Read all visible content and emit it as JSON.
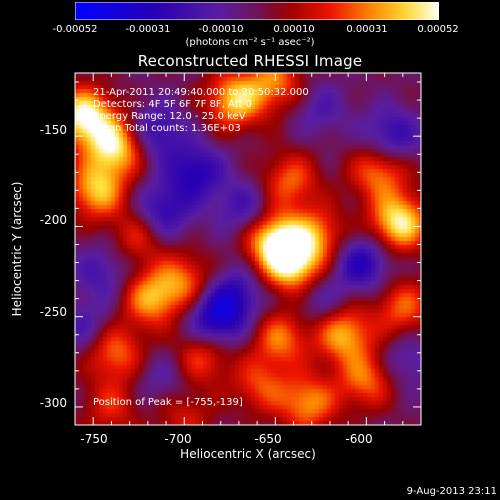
{
  "chart_data": {
    "type": "heatmap",
    "title": "Reconstructed RHESSI Image",
    "xlabel": "Heliocentric X (arcsec)",
    "ylabel": "Heliocentric Y (arcsec)",
    "xlim": [
      -760,
      -570
    ],
    "ylim": [
      -310,
      -115
    ],
    "x_ticks": [
      -750,
      -700,
      -650,
      -600
    ],
    "y_ticks": [
      -150,
      -200,
      -250,
      -300
    ],
    "colorbar": {
      "range": [
        -0.00052,
        0.00052
      ],
      "tick_labels": [
        "-0.00052",
        "-0.00031",
        "-0.00010",
        "0.00010",
        "0.00031",
        "0.00052"
      ],
      "units": "(photons cm⁻² s⁻¹ asec⁻²)",
      "colors": [
        "#0000ff",
        "#4b0082",
        "#6a1fa6",
        "#7a0000",
        "#ff0000",
        "#ff8c00",
        "#ffffff"
      ]
    },
    "annotations": [
      "21-Apr-2011 20:49:40.000 to 20:50:32.000",
      "Detectors: 4F 5F 6F 7F 8F, Att 0",
      "Energy Range: 12.0 - 25.0 keV",
      "Clean    Total counts: 1.36E+03"
    ],
    "peak_label": "Position of Peak = [-755,-139]",
    "peak": [
      -755,
      -139
    ],
    "sources": [
      {
        "x": -755,
        "y": -139,
        "v": 0.00052
      },
      {
        "x": -738,
        "y": -156,
        "v": 0.00046
      },
      {
        "x": -748,
        "y": -180,
        "v": 0.0004
      },
      {
        "x": -672,
        "y": -130,
        "v": 0.00042
      },
      {
        "x": -650,
        "y": -120,
        "v": 0.0003
      },
      {
        "x": -642,
        "y": -175,
        "v": 0.00028
      },
      {
        "x": -650,
        "y": -208,
        "v": 0.0005
      },
      {
        "x": -640,
        "y": -222,
        "v": 0.00045
      },
      {
        "x": -627,
        "y": -205,
        "v": 0.0003
      },
      {
        "x": -582,
        "y": -198,
        "v": 0.00049
      },
      {
        "x": -593,
        "y": -170,
        "v": 0.00032
      },
      {
        "x": -580,
        "y": -245,
        "v": 0.00028
      },
      {
        "x": -725,
        "y": -205,
        "v": 0.00022
      },
      {
        "x": -718,
        "y": -240,
        "v": 0.00036
      },
      {
        "x": -700,
        "y": -230,
        "v": 0.00028
      },
      {
        "x": -738,
        "y": -270,
        "v": 0.0003
      },
      {
        "x": -690,
        "y": -272,
        "v": 0.00026
      },
      {
        "x": -647,
        "y": -262,
        "v": 0.0003
      },
      {
        "x": -612,
        "y": -260,
        "v": 0.00038
      },
      {
        "x": -600,
        "y": -285,
        "v": 0.0003
      },
      {
        "x": -632,
        "y": -298,
        "v": 0.00034
      },
      {
        "x": -658,
        "y": -288,
        "v": 0.00024
      },
      {
        "x": -700,
        "y": -305,
        "v": 0.00018
      },
      {
        "x": -740,
        "y": -300,
        "v": 0.0002
      },
      {
        "x": -715,
        "y": -148,
        "v": -0.00025
      },
      {
        "x": -694,
        "y": -170,
        "v": -0.0003
      },
      {
        "x": -712,
        "y": -192,
        "v": -0.00028
      },
      {
        "x": -683,
        "y": -252,
        "v": -0.00035
      },
      {
        "x": -672,
        "y": -238,
        "v": -0.00025
      },
      {
        "x": -602,
        "y": -220,
        "v": -0.0003
      },
      {
        "x": -586,
        "y": -150,
        "v": -0.00026
      },
      {
        "x": -625,
        "y": -135,
        "v": -0.00015
      },
      {
        "x": -745,
        "y": -225,
        "v": -0.00018
      },
      {
        "x": -755,
        "y": -255,
        "v": -0.00016
      },
      {
        "x": -667,
        "y": -190,
        "v": -0.0002
      },
      {
        "x": -626,
        "y": -240,
        "v": -0.00015
      },
      {
        "x": -578,
        "y": -275,
        "v": -0.00016
      },
      {
        "x": -712,
        "y": -285,
        "v": -0.00014
      }
    ]
  },
  "footer_date": "9-Aug-2013 23:11"
}
